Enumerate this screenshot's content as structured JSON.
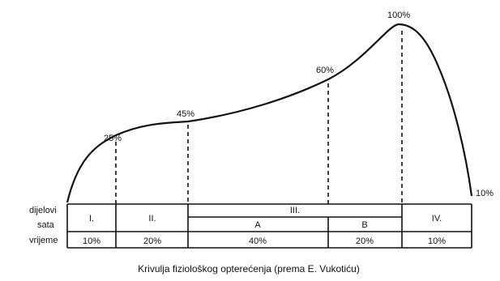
{
  "chart_data": {
    "type": "line",
    "caption": "Krivulja fiziološkog opterećenja (prema E. Vukotiću)",
    "points": [
      {
        "label": "25%",
        "value": 25
      },
      {
        "label": "45%",
        "value": 45
      },
      {
        "label": "60%",
        "value": 60
      },
      {
        "label": "100%",
        "value": 100
      },
      {
        "label": "10%",
        "value": 10
      }
    ],
    "row_labels": [
      "dijelovi",
      "sata",
      "vrijeme"
    ],
    "segments": [
      {
        "part": "I.",
        "time": "10%"
      },
      {
        "part": "II.",
        "time": "20%"
      },
      {
        "part": "III.",
        "time": ""
      },
      {
        "part": "IV.",
        "time": "10%"
      }
    ],
    "sub_segments": [
      {
        "part": "A",
        "time": "40%"
      },
      {
        "part": "B",
        "time": "20%"
      }
    ]
  }
}
